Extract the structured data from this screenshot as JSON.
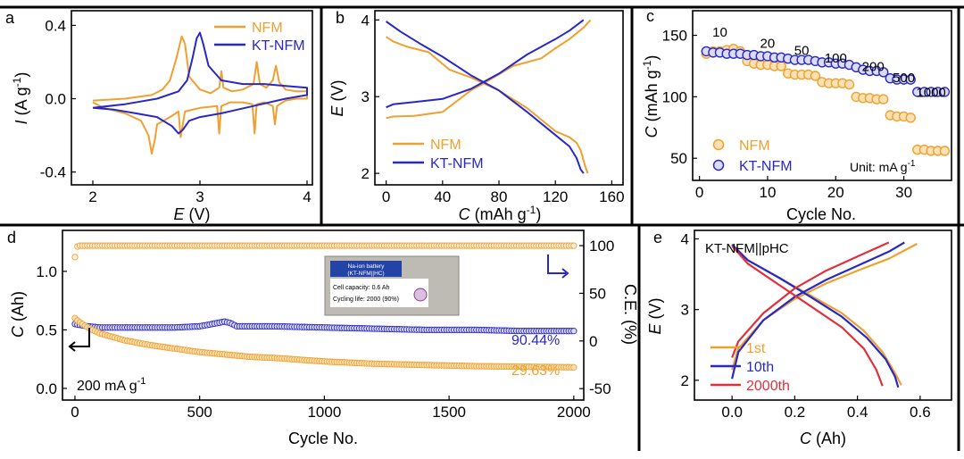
{
  "colors": {
    "nfm": "#F0A030",
    "kt": "#2828C8",
    "red": "#E0303A",
    "nfm_fill": "#FBE1B4",
    "kt_fill": "#DCDCF5",
    "axis_right": "#2828C8"
  },
  "chart_data": [
    {
      "id": "a",
      "type": "line",
      "panel_label": "a",
      "xlabel_prefix": "E",
      "xlabel_suffix": "(V)",
      "ylabel_prefix": "I",
      "ylabel_suffix": "(A g",
      "ylabel_sup": "-1",
      "ylabel_end": ")",
      "xlim": [
        1.8,
        4.05
      ],
      "ylim": [
        -0.47,
        0.48
      ],
      "xticks": [
        "2",
        "3",
        "4"
      ],
      "xtick_values": [
        2,
        3,
        4
      ],
      "yticks": [
        "0.4",
        "0.0",
        "-0.4"
      ],
      "ytick_values": [
        0.4,
        0.0,
        -0.4
      ],
      "legend": [
        "NFM",
        "KT-NFM"
      ],
      "series": [
        {
          "name": "NFM",
          "color": "nfm",
          "x": [
            2.0,
            2.3,
            2.55,
            2.65,
            2.72,
            2.78,
            2.83,
            2.86,
            2.9,
            3.0,
            3.1,
            3.18,
            3.2,
            3.22,
            3.3,
            3.4,
            3.5,
            3.53,
            3.56,
            3.62,
            3.68,
            3.71,
            3.74,
            3.8,
            3.9,
            4.0,
            4.0,
            3.9,
            3.8,
            3.72,
            3.7,
            3.68,
            3.6,
            3.53,
            3.51,
            3.49,
            3.4,
            3.28,
            3.2,
            3.18,
            3.16,
            3.0,
            2.86,
            2.82,
            2.8,
            2.72,
            2.6,
            2.58,
            2.55,
            2.52,
            2.45,
            2.3,
            2.1,
            2.0
          ],
          "y": [
            -0.01,
            0.0,
            0.02,
            0.05,
            0.1,
            0.22,
            0.34,
            0.3,
            0.12,
            0.05,
            0.03,
            0.06,
            0.15,
            0.06,
            0.04,
            0.05,
            0.08,
            0.2,
            0.08,
            0.06,
            0.1,
            0.18,
            0.09,
            0.05,
            0.04,
            0.04,
            0.0,
            0.0,
            -0.01,
            -0.04,
            -0.14,
            -0.04,
            -0.02,
            -0.03,
            -0.19,
            -0.03,
            -0.02,
            -0.02,
            -0.04,
            -0.19,
            -0.04,
            -0.05,
            -0.07,
            -0.21,
            -0.07,
            -0.1,
            -0.14,
            -0.22,
            -0.3,
            -0.2,
            -0.12,
            -0.08,
            -0.05,
            -0.02
          ]
        },
        {
          "name": "KT-NFM",
          "color": "kt",
          "x": [
            2.0,
            2.3,
            2.6,
            2.8,
            2.88,
            2.93,
            2.97,
            3.0,
            3.03,
            3.08,
            3.2,
            3.4,
            3.6,
            3.8,
            4.0,
            4.0,
            3.8,
            3.5,
            3.2,
            3.0,
            2.9,
            2.84,
            2.8,
            2.74,
            2.6,
            2.4,
            2.2,
            2.0
          ],
          "y": [
            -0.05,
            -0.03,
            0.0,
            0.04,
            0.1,
            0.22,
            0.33,
            0.36,
            0.3,
            0.18,
            0.1,
            0.08,
            0.08,
            0.07,
            0.06,
            0.02,
            0.0,
            -0.04,
            -0.08,
            -0.1,
            -0.12,
            -0.17,
            -0.19,
            -0.15,
            -0.1,
            -0.08,
            -0.06,
            -0.05
          ]
        }
      ]
    },
    {
      "id": "b",
      "type": "line",
      "panel_label": "b",
      "xlabel_prefix": "C",
      "xlabel_suffix": "(mAh g",
      "xlabel_sup": "-1",
      "xlabel_end": ")",
      "ylabel_prefix": "E",
      "ylabel_suffix": "(V)",
      "xlim": [
        -8,
        168
      ],
      "ylim": [
        1.85,
        4.12
      ],
      "xticks": [
        "0",
        "40",
        "80",
        "120",
        "160"
      ],
      "xtick_values": [
        0,
        40,
        80,
        120,
        160
      ],
      "yticks": [
        "4",
        "3",
        "2"
      ],
      "ytick_values": [
        4,
        3,
        2
      ],
      "legend": [
        "NFM",
        "KT-NFM"
      ],
      "series": [
        {
          "name": "NFM charge",
          "color": "nfm",
          "x": [
            0,
            5,
            20,
            40,
            60,
            70,
            90,
            110,
            120,
            130,
            140,
            145
          ],
          "y": [
            2.72,
            2.74,
            2.75,
            2.8,
            3.08,
            3.18,
            3.4,
            3.5,
            3.63,
            3.75,
            3.9,
            4.0
          ]
        },
        {
          "name": "NFM discharge",
          "color": "nfm",
          "x": [
            0,
            5,
            15,
            30,
            45,
            60,
            80,
            100,
            120,
            130,
            135,
            138,
            141,
            143
          ],
          "y": [
            3.78,
            3.72,
            3.65,
            3.58,
            3.35,
            3.25,
            3.08,
            2.85,
            2.55,
            2.47,
            2.4,
            2.3,
            2.1,
            2.0
          ]
        },
        {
          "name": "KT-NFM charge",
          "color": "kt",
          "x": [
            0,
            5,
            20,
            40,
            60,
            80,
            100,
            120,
            130,
            140
          ],
          "y": [
            2.86,
            2.9,
            2.93,
            2.97,
            3.1,
            3.3,
            3.55,
            3.75,
            3.86,
            4.0
          ]
        },
        {
          "name": "KT-NFM discharge",
          "color": "kt",
          "x": [
            0,
            10,
            25,
            40,
            60,
            80,
            100,
            120,
            130,
            135,
            138,
            140
          ],
          "y": [
            3.98,
            3.85,
            3.68,
            3.52,
            3.28,
            3.08,
            2.8,
            2.5,
            2.35,
            2.2,
            2.05,
            2.0
          ]
        }
      ]
    },
    {
      "id": "c",
      "type": "scatter",
      "panel_label": "c",
      "xlabel": "Cycle No.",
      "ylabel_prefix": "C",
      "ylabel_suffix": "(mAh g",
      "ylabel_sup": "-1",
      "ylabel_end": ")",
      "xlim": [
        -1,
        37
      ],
      "ylim": [
        32,
        170
      ],
      "xticks": [
        "0",
        "10",
        "20",
        "30"
      ],
      "xtick_values": [
        0,
        10,
        20,
        30
      ],
      "yticks": [
        "150",
        "100",
        "50"
      ],
      "ytick_values": [
        150,
        100,
        50
      ],
      "legend": [
        "NFM",
        "KT-NFM"
      ],
      "unit_prefix": "Unit: mA g",
      "unit_sup": "-1",
      "rate_labels": [
        "10",
        "20",
        "50",
        "100",
        "200",
        "500",
        "1000"
      ],
      "rate_label_x": [
        3.0,
        10.0,
        15.0,
        20.0,
        25.5,
        30.0,
        34.0
      ],
      "rate_label_y": [
        149,
        140,
        134,
        128,
        121,
        112,
        100
      ],
      "series": [
        {
          "name": "NFM",
          "color": "nfm",
          "x": [
            1,
            2,
            3,
            4,
            5,
            6,
            7,
            8,
            9,
            10,
            11,
            12,
            13,
            14,
            15,
            16,
            17,
            18,
            19,
            20,
            21,
            22,
            23,
            24,
            25,
            26,
            27,
            28,
            29,
            30,
            31,
            32,
            33,
            34,
            35,
            36
          ],
          "y": [
            135,
            137,
            137,
            138,
            139,
            137,
            129,
            127,
            126,
            126,
            125,
            125,
            119,
            118,
            118,
            118,
            117,
            112,
            111,
            111,
            111,
            110,
            100,
            99,
            99,
            98,
            98,
            85,
            84,
            84,
            83,
            57,
            57,
            56,
            56,
            56
          ]
        },
        {
          "name": "KT-NFM",
          "color": "kt",
          "x": [
            1,
            2,
            3,
            4,
            5,
            6,
            7,
            8,
            9,
            10,
            11,
            12,
            13,
            14,
            15,
            16,
            17,
            18,
            19,
            20,
            21,
            22,
            23,
            24,
            25,
            26,
            27,
            28,
            29,
            30,
            31,
            32,
            33,
            34,
            35,
            36
          ],
          "y": [
            137,
            136,
            136,
            135,
            135,
            135,
            134,
            134,
            133,
            133,
            132,
            132,
            131,
            130,
            130,
            130,
            129,
            128,
            128,
            127,
            127,
            126,
            124,
            122,
            121,
            121,
            120,
            115,
            114,
            114,
            114,
            104,
            104,
            104,
            104,
            104
          ]
        }
      ]
    },
    {
      "id": "d",
      "type": "scatter",
      "panel_label": "d",
      "xlabel": "Cycle No.",
      "ylabel_prefix": "C",
      "ylabel_suffix": "(Ah)",
      "y2label": "C.E. (%)",
      "xlim": [
        -50,
        2040
      ],
      "ylim": [
        -0.1,
        1.35
      ],
      "y2lim": [
        -62,
        116
      ],
      "xticks": [
        "0",
        "500",
        "1000",
        "1500",
        "2000"
      ],
      "xtick_values": [
        0,
        500,
        1000,
        1500,
        2000
      ],
      "yticks": [
        "1.0",
        "0.5",
        "0.0"
      ],
      "ytick_values": [
        1.0,
        0.5,
        0.0
      ],
      "y2ticks": [
        "100",
        "50",
        "0",
        "-50"
      ],
      "y2tick_values": [
        100,
        50,
        0,
        -50
      ],
      "current_prefix": "200 mA g",
      "current_sup": "-1",
      "retention_kt": "90.44%",
      "retention_nfm": "29.63%",
      "inset_title1": "Na-ion battery",
      "inset_title2": "(KT-NFM||HC)",
      "inset_line1": "Cell capacity: 0.6 Ah",
      "inset_line2": "Cycling life: 2000 (90%)",
      "series": [
        {
          "name": "NFM capacity",
          "color": "nfm",
          "x": [
            0,
            10,
            30,
            60,
            100,
            150,
            200,
            300,
            400,
            500,
            600,
            700,
            800,
            1000,
            1200,
            1400,
            1600,
            1800,
            2000
          ],
          "y": [
            0.6,
            0.58,
            0.55,
            0.51,
            0.47,
            0.44,
            0.41,
            0.37,
            0.34,
            0.31,
            0.29,
            0.27,
            0.26,
            0.23,
            0.21,
            0.2,
            0.19,
            0.185,
            0.18
          ]
        },
        {
          "name": "KT-NFM capacity",
          "color": "kt",
          "x": [
            0,
            50,
            100,
            200,
            300,
            400,
            500,
            550,
            600,
            620,
            650,
            700,
            800,
            1000,
            1200,
            1400,
            1600,
            1800,
            2000
          ],
          "y": [
            0.55,
            0.53,
            0.52,
            0.52,
            0.52,
            0.52,
            0.53,
            0.55,
            0.57,
            0.56,
            0.53,
            0.53,
            0.53,
            0.52,
            0.51,
            0.5,
            0.5,
            0.49,
            0.49
          ]
        },
        {
          "name": "C.E.",
          "color": "nfm",
          "x": [
            0,
            10,
            20,
            50,
            100,
            500,
            1000,
            1500,
            2000
          ],
          "y": [
            88,
            99,
            100,
            100,
            100,
            100,
            100,
            100,
            100
          ]
        }
      ]
    },
    {
      "id": "e",
      "type": "line",
      "panel_label": "e",
      "title": "KT-NFM||pHC",
      "xlabel_prefix": "C",
      "xlabel_suffix": "(Ah)",
      "ylabel_prefix": "E",
      "ylabel_suffix": "(V)",
      "xlim": [
        -0.12,
        0.7
      ],
      "ylim": [
        1.72,
        4.12
      ],
      "xticks": [
        "0.0",
        "0.2",
        "0.4",
        "0.6"
      ],
      "xtick_values": [
        0.0,
        0.2,
        0.4,
        0.6
      ],
      "yticks": [
        "4",
        "3",
        "2"
      ],
      "ytick_values": [
        4,
        3,
        2
      ],
      "legend": [
        "1st",
        "10th",
        "2000th"
      ],
      "series": [
        {
          "name": "1st charge",
          "color": "nfm",
          "x": [
            0.0,
            0.02,
            0.1,
            0.2,
            0.3,
            0.4,
            0.5,
            0.59
          ],
          "y": [
            2.15,
            2.45,
            2.85,
            3.15,
            3.37,
            3.55,
            3.72,
            3.93
          ]
        },
        {
          "name": "1st discharge",
          "color": "nfm",
          "x": [
            0.0,
            0.05,
            0.15,
            0.25,
            0.35,
            0.42,
            0.48,
            0.52,
            0.54
          ],
          "y": [
            3.9,
            3.7,
            3.45,
            3.2,
            2.95,
            2.7,
            2.4,
            2.1,
            1.93
          ]
        },
        {
          "name": "10th charge",
          "color": "kt",
          "x": [
            0.0,
            0.02,
            0.1,
            0.2,
            0.3,
            0.4,
            0.5,
            0.55
          ],
          "y": [
            2.02,
            2.4,
            2.85,
            3.18,
            3.42,
            3.62,
            3.82,
            3.95
          ]
        },
        {
          "name": "10th discharge",
          "color": "kt",
          "x": [
            0.0,
            0.05,
            0.15,
            0.25,
            0.35,
            0.43,
            0.49,
            0.52,
            0.53
          ],
          "y": [
            3.92,
            3.7,
            3.45,
            3.18,
            2.9,
            2.6,
            2.3,
            2.05,
            1.9
          ]
        },
        {
          "name": "2000th charge",
          "color": "red",
          "x": [
            0.0,
            0.02,
            0.1,
            0.2,
            0.3,
            0.4,
            0.5
          ],
          "y": [
            2.32,
            2.55,
            2.95,
            3.3,
            3.55,
            3.75,
            3.95
          ]
        },
        {
          "name": "2000th discharge",
          "color": "red",
          "x": [
            0.0,
            0.05,
            0.15,
            0.25,
            0.35,
            0.42,
            0.46,
            0.48
          ],
          "y": [
            3.9,
            3.65,
            3.35,
            3.05,
            2.75,
            2.45,
            2.15,
            1.92
          ]
        }
      ]
    }
  ]
}
